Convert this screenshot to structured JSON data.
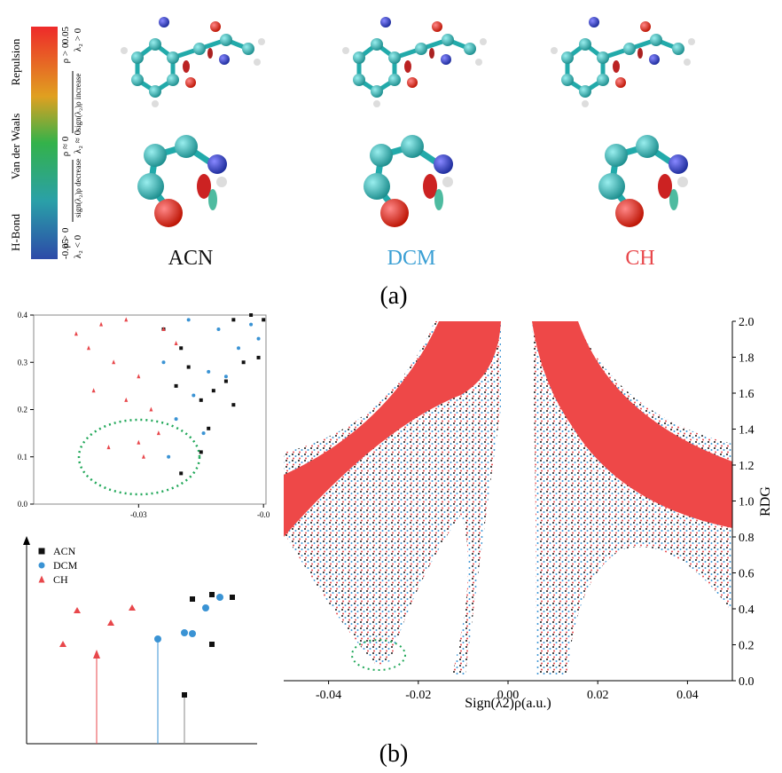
{
  "colorbar": {
    "top_label": "Repulsion",
    "mid_label": "Van der Waals",
    "bottom_label": "H-Bond",
    "max": "0.05",
    "min": "-0.05",
    "top_rho": "ρ > 0",
    "top_lambda": "λ₂ > 0",
    "increase": "sign(λ₂)ρ increase",
    "mid_rho": "ρ ≈ 0",
    "mid_lambda": "λ₂ ≈ 0",
    "decrease": "sign(λ₂)ρ decrease",
    "bottom_rho": "ρ > 0",
    "bottom_lambda": "λ₂ < 0"
  },
  "molecule_labels": [
    "ACN",
    "DCM",
    "CH"
  ],
  "panel_labels": [
    "(a)",
    "(b)"
  ],
  "chart_data": [
    {
      "type": "scatter",
      "xlim": [
        -0.0342,
        -0.0249
      ],
      "ylim": [
        0,
        0.4
      ],
      "xticks": [
        -0.03,
        {
          "value": -0.025,
          "label": "-0.0"
        }
      ],
      "yticks": [
        {
          "value": 0,
          "label": "0.0"
        },
        0.1,
        0.2,
        0.3,
        0.4
      ],
      "series": [
        {
          "name": "ACN",
          "color": "#111111",
          "marker": "square",
          "x": [
            -0.0262,
            -0.0255,
            -0.025,
            -0.0252,
            -0.0258,
            -0.0265,
            -0.027,
            -0.0275,
            -0.0262,
            -0.028,
            -0.0285,
            -0.0272,
            -0.0275,
            -0.0283,
            -0.029,
            -0.0283
          ],
          "values": [
            0.39,
            0.4,
            0.39,
            0.31,
            0.3,
            0.26,
            0.24,
            0.22,
            0.21,
            0.29,
            0.25,
            0.16,
            0.11,
            0.065,
            0.37,
            0.33
          ]
        },
        {
          "name": "DCM",
          "color": "#3a93d4",
          "marker": "circle",
          "x": [
            -0.028,
            -0.0268,
            -0.0255,
            -0.026,
            -0.0272,
            -0.0265,
            -0.0278,
            -0.0285,
            -0.0274,
            -0.0288,
            -0.0252,
            -0.029
          ],
          "values": [
            0.39,
            0.37,
            0.38,
            0.33,
            0.28,
            0.27,
            0.23,
            0.18,
            0.15,
            0.1,
            0.35,
            0.3
          ]
        },
        {
          "name": "CH",
          "color": "#e8474b",
          "marker": "triangle",
          "x": [
            -0.0325,
            -0.0315,
            -0.0305,
            -0.032,
            -0.031,
            -0.03,
            -0.0318,
            -0.0305,
            -0.0295,
            -0.0292,
            -0.03,
            -0.0312,
            -0.0298,
            -0.029,
            -0.0285
          ],
          "values": [
            0.36,
            0.38,
            0.39,
            0.33,
            0.3,
            0.27,
            0.24,
            0.22,
            0.2,
            0.15,
            0.13,
            0.12,
            0.1,
            0.37,
            0.34
          ]
        }
      ]
    },
    {
      "type": "scatter",
      "xlabel": "Sign(λ2)ρ(a.u.)",
      "ylabel": "RDG",
      "xlim": [
        -0.05,
        0.05
      ],
      "ylim": [
        0,
        2
      ],
      "xticks": [
        {
          "value": -0.04,
          "label": "-0.04"
        },
        {
          "value": -0.02,
          "label": "-0.02"
        },
        {
          "value": 0,
          "label": "0.00"
        },
        0.02,
        0.04
      ],
      "yticks": [
        {
          "value": 0,
          "label": "0.0"
        },
        0.2,
        0.4,
        0.6,
        0.8,
        {
          "value": 1,
          "label": "1.0"
        },
        1.2,
        1.4,
        1.6,
        1.8,
        {
          "value": 2,
          "label": "2.0"
        }
      ]
    }
  ]
}
